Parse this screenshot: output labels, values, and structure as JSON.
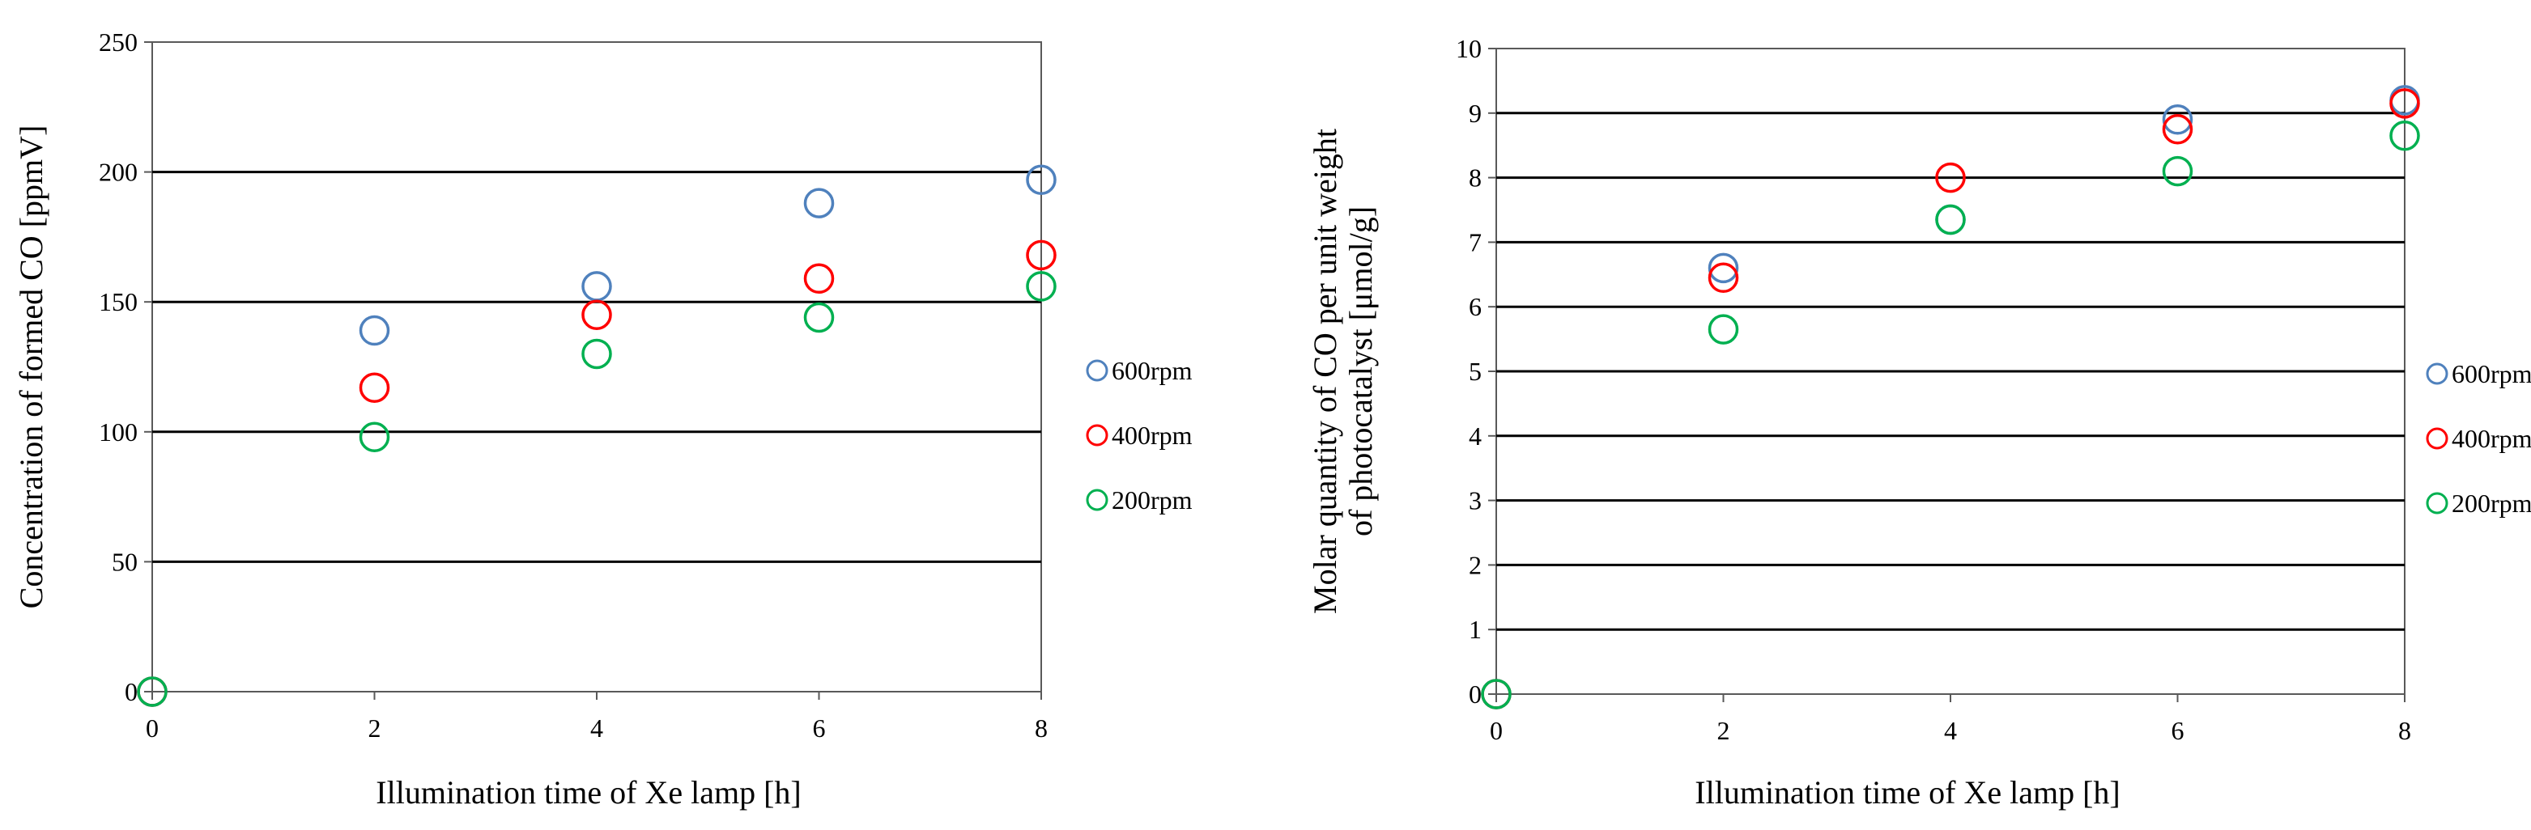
{
  "chart_data": [
    {
      "type": "scatter",
      "title": "",
      "xlabel": "Illumination  time  of Xe lamp  [h]",
      "ylabel": "Concentration  of formed  CO [ppmV]",
      "ylabel_lines": [
        "Concentration  of formed  CO [ppmV]"
      ],
      "xlim": [
        0,
        8
      ],
      "ylim": [
        0,
        250
      ],
      "xticks": [
        0,
        2,
        4,
        6,
        8
      ],
      "yticks": [
        0,
        50,
        100,
        150,
        200,
        250
      ],
      "grid": "horizontal",
      "legend_position": "right",
      "series": [
        {
          "name": "600rpm",
          "color": "#4f81bd",
          "points": [
            [
              0,
              0
            ],
            [
              2,
              139
            ],
            [
              4,
              156
            ],
            [
              6,
              188
            ],
            [
              8,
              197
            ]
          ]
        },
        {
          "name": "400rpm",
          "color": "#ff0000",
          "points": [
            [
              0,
              0
            ],
            [
              2,
              117
            ],
            [
              4,
              145
            ],
            [
              6,
              159
            ],
            [
              8,
              168
            ]
          ]
        },
        {
          "name": "200rpm",
          "color": "#00b050",
          "points": [
            [
              0,
              0
            ],
            [
              2,
              98
            ],
            [
              4,
              130
            ],
            [
              6,
              144
            ],
            [
              8,
              156
            ]
          ]
        }
      ]
    },
    {
      "type": "scatter",
      "title": "",
      "xlabel": "Illumination  time  of Xe lamp  [h]",
      "ylabel": "Molar  quantity  of CO per unit  weight of photocatalyst  [μmol/g]",
      "ylabel_lines": [
        "Molar  quantity  of CO per unit  weight",
        "of photocatalyst  [μmol/g]"
      ],
      "xlim": [
        0,
        8
      ],
      "ylim": [
        0,
        10
      ],
      "xticks": [
        0,
        2,
        4,
        6,
        8
      ],
      "yticks": [
        0,
        1,
        2,
        3,
        4,
        5,
        6,
        7,
        8,
        9,
        10
      ],
      "grid": "horizontal",
      "legend_position": "right",
      "series": [
        {
          "name": "600rpm",
          "color": "#4f81bd",
          "points": [
            [
              0,
              0
            ],
            [
              2,
              6.6
            ],
            [
              4,
              7.35
            ],
            [
              6,
              8.9
            ],
            [
              8,
              9.2
            ]
          ]
        },
        {
          "name": "400rpm",
          "color": "#ff0000",
          "points": [
            [
              0,
              0
            ],
            [
              2,
              6.45
            ],
            [
              4,
              8.0
            ],
            [
              6,
              8.75
            ],
            [
              8,
              9.15
            ]
          ]
        },
        {
          "name": "200rpm",
          "color": "#00b050",
          "points": [
            [
              0,
              0
            ],
            [
              2,
              5.65
            ],
            [
              4,
              7.35
            ],
            [
              6,
              8.1
            ],
            [
              8,
              8.65
            ]
          ]
        }
      ]
    }
  ]
}
